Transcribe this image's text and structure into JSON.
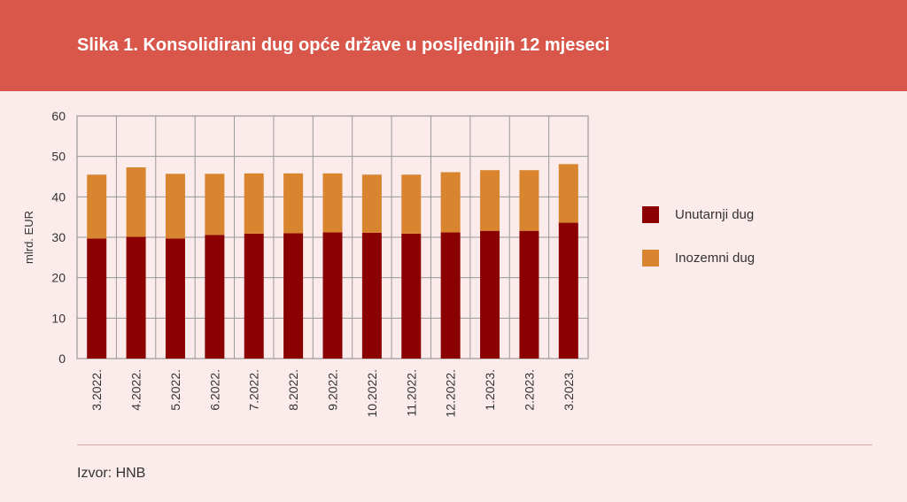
{
  "title": "Slika 1. Konsolidirani dug opće države u posljednjih 12 mjeseci",
  "source": "Izvor: HNB",
  "chart_data": {
    "type": "bar",
    "stacked": true,
    "title": "Slika 1. Konsolidirani dug opće države u posljednjih 12 mjeseci",
    "xlabel": "",
    "ylabel": "mlrd. EUR",
    "ylim": [
      0,
      60
    ],
    "yticks": [
      0,
      10,
      20,
      30,
      40,
      50,
      60
    ],
    "grid": true,
    "legend_position": "right",
    "categories": [
      "3.2022.",
      "4.2022.",
      "5.2022.",
      "6.2022.",
      "7.2022.",
      "8.2022.",
      "9.2022.",
      "10.2022.",
      "11.2022.",
      "12.2022.",
      "1.2023.",
      "2.2023.",
      "3.2023."
    ],
    "series": [
      {
        "name": "Unutarnji dug",
        "color": "#8b0000",
        "values": [
          29.7,
          30.1,
          29.7,
          30.6,
          30.9,
          31.0,
          31.2,
          31.1,
          30.9,
          31.2,
          31.6,
          31.6,
          33.6
        ]
      },
      {
        "name": "Inozemni dug",
        "color": "#d98530",
        "values": [
          15.8,
          17.2,
          16.0,
          15.1,
          14.9,
          14.8,
          14.6,
          14.4,
          14.6,
          14.9,
          15.0,
          15.0,
          14.5
        ]
      }
    ]
  }
}
